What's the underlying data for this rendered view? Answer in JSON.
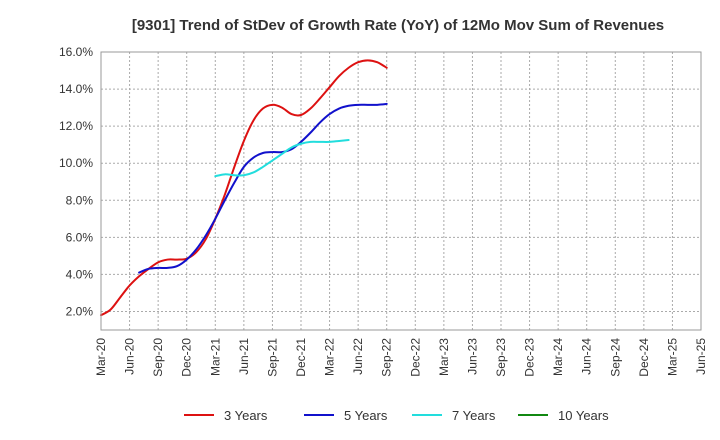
{
  "chart_data": {
    "type": "line",
    "title": "[9301]  Trend of StDev of Growth Rate (YoY) of 12Mo Mov Sum of Revenues",
    "xlabel": "",
    "ylabel": "",
    "x_ticks": [
      "Mar-20",
      "Jun-20",
      "Sep-20",
      "Dec-20",
      "Mar-21",
      "Jun-21",
      "Sep-21",
      "Dec-21",
      "Mar-22",
      "Jun-22",
      "Sep-22",
      "Dec-22",
      "Mar-23",
      "Jun-23",
      "Sep-23",
      "Dec-23",
      "Mar-24",
      "Jun-24",
      "Sep-24",
      "Dec-24",
      "Mar-25",
      "Jun-25"
    ],
    "y_ticks": [
      "2.0%",
      "4.0%",
      "6.0%",
      "8.0%",
      "10.0%",
      "12.0%",
      "14.0%",
      "16.0%"
    ],
    "y_tick_values": [
      2,
      4,
      6,
      8,
      10,
      12,
      14,
      16
    ],
    "ylim": [
      1.0,
      16.0
    ],
    "grid": true,
    "legend_position": "bottom",
    "series": [
      {
        "name": "3 Years",
        "color": "#dd1111",
        "start_index": 0,
        "values": [
          1.8,
          2.1,
          2.75,
          3.4,
          3.9,
          4.3,
          4.65,
          4.8,
          4.8,
          4.85,
          5.2,
          5.9,
          7.0,
          8.3,
          9.8,
          11.2,
          12.3,
          12.95,
          13.15,
          13.0,
          12.65,
          12.6,
          12.95,
          13.5,
          14.1,
          14.7,
          15.15,
          15.45,
          15.55,
          15.45,
          15.15
        ]
      },
      {
        "name": "5 Years",
        "color": "#1111cc",
        "start_index": 4,
        "values": [
          4.1,
          4.3,
          4.35,
          4.35,
          4.45,
          4.8,
          5.35,
          6.1,
          7.0,
          8.0,
          8.95,
          9.8,
          10.3,
          10.55,
          10.6,
          10.6,
          10.75,
          11.15,
          11.65,
          12.2,
          12.65,
          12.95,
          13.1,
          13.15,
          13.15,
          13.15,
          13.2
        ]
      },
      {
        "name": "7 Years",
        "color": "#22dddd",
        "start_index": 12,
        "values": [
          9.3,
          9.4,
          9.35,
          9.35,
          9.5,
          9.8,
          10.15,
          10.5,
          10.85,
          11.05,
          11.15,
          11.15,
          11.15,
          11.2,
          11.25
        ]
      },
      {
        "name": "10 Years",
        "color": "#118811",
        "start_index": 0,
        "values": []
      }
    ]
  }
}
